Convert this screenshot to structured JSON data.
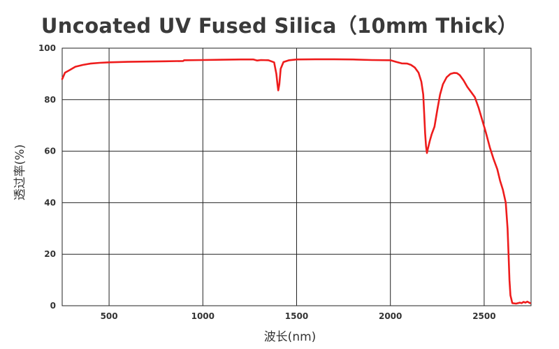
{
  "chart_data": {
    "type": "line",
    "title": "Uncoated UV Fused Silica（10mm Thick）",
    "xlabel": "波长(nm)",
    "ylabel": "透过率(%)",
    "xlim": [
      250,
      2750
    ],
    "ylim": [
      0,
      100
    ],
    "x_ticks": [
      500,
      1000,
      1500,
      2000,
      2500
    ],
    "y_ticks": [
      0,
      20,
      40,
      60,
      80,
      100
    ],
    "grid": true,
    "legend": "none",
    "series": [
      {
        "color": "#ee1c1c",
        "points": [
          [
            250,
            88
          ],
          [
            265,
            90.5
          ],
          [
            290,
            91.5
          ],
          [
            320,
            92.8
          ],
          [
            360,
            93.5
          ],
          [
            400,
            94
          ],
          [
            450,
            94.3
          ],
          [
            500,
            94.5
          ],
          [
            600,
            94.7
          ],
          [
            700,
            94.8
          ],
          [
            800,
            94.9
          ],
          [
            895,
            95
          ],
          [
            900,
            95.3
          ],
          [
            1000,
            95.4
          ],
          [
            1100,
            95.5
          ],
          [
            1200,
            95.6
          ],
          [
            1270,
            95.6
          ],
          [
            1290,
            95.2
          ],
          [
            1310,
            95.4
          ],
          [
            1350,
            95.3
          ],
          [
            1380,
            94.5
          ],
          [
            1392,
            90
          ],
          [
            1398,
            86
          ],
          [
            1402,
            83.6
          ],
          [
            1408,
            86
          ],
          [
            1415,
            92
          ],
          [
            1430,
            94.6
          ],
          [
            1460,
            95.3
          ],
          [
            1500,
            95.6
          ],
          [
            1600,
            95.7
          ],
          [
            1700,
            95.7
          ],
          [
            1800,
            95.6
          ],
          [
            1900,
            95.4
          ],
          [
            2000,
            95.3
          ],
          [
            2030,
            94.7
          ],
          [
            2060,
            94.1
          ],
          [
            2090,
            94
          ],
          [
            2110,
            93.5
          ],
          [
            2130,
            92.5
          ],
          [
            2150,
            90.5
          ],
          [
            2165,
            87
          ],
          [
            2175,
            82
          ],
          [
            2180,
            75
          ],
          [
            2185,
            67
          ],
          [
            2190,
            62
          ],
          [
            2195,
            59.3
          ],
          [
            2200,
            61
          ],
          [
            2210,
            64
          ],
          [
            2220,
            66.5
          ],
          [
            2235,
            69.5
          ],
          [
            2250,
            76
          ],
          [
            2265,
            82
          ],
          [
            2280,
            86
          ],
          [
            2300,
            88.7
          ],
          [
            2320,
            90
          ],
          [
            2340,
            90.4
          ],
          [
            2355,
            90.3
          ],
          [
            2370,
            89.5
          ],
          [
            2390,
            87.5
          ],
          [
            2410,
            85
          ],
          [
            2430,
            83
          ],
          [
            2450,
            81
          ],
          [
            2470,
            77
          ],
          [
            2490,
            72
          ],
          [
            2510,
            67
          ],
          [
            2530,
            61.5
          ],
          [
            2550,
            57
          ],
          [
            2570,
            53
          ],
          [
            2585,
            48.5
          ],
          [
            2600,
            45
          ],
          [
            2615,
            40
          ],
          [
            2625,
            30
          ],
          [
            2630,
            20
          ],
          [
            2635,
            10
          ],
          [
            2640,
            4
          ],
          [
            2650,
            1
          ],
          [
            2670,
            0.8
          ],
          [
            2690,
            1.2
          ],
          [
            2700,
            1
          ],
          [
            2710,
            1.5
          ],
          [
            2720,
            1.2
          ],
          [
            2730,
            1.6
          ],
          [
            2745,
            1
          ]
        ]
      }
    ]
  }
}
